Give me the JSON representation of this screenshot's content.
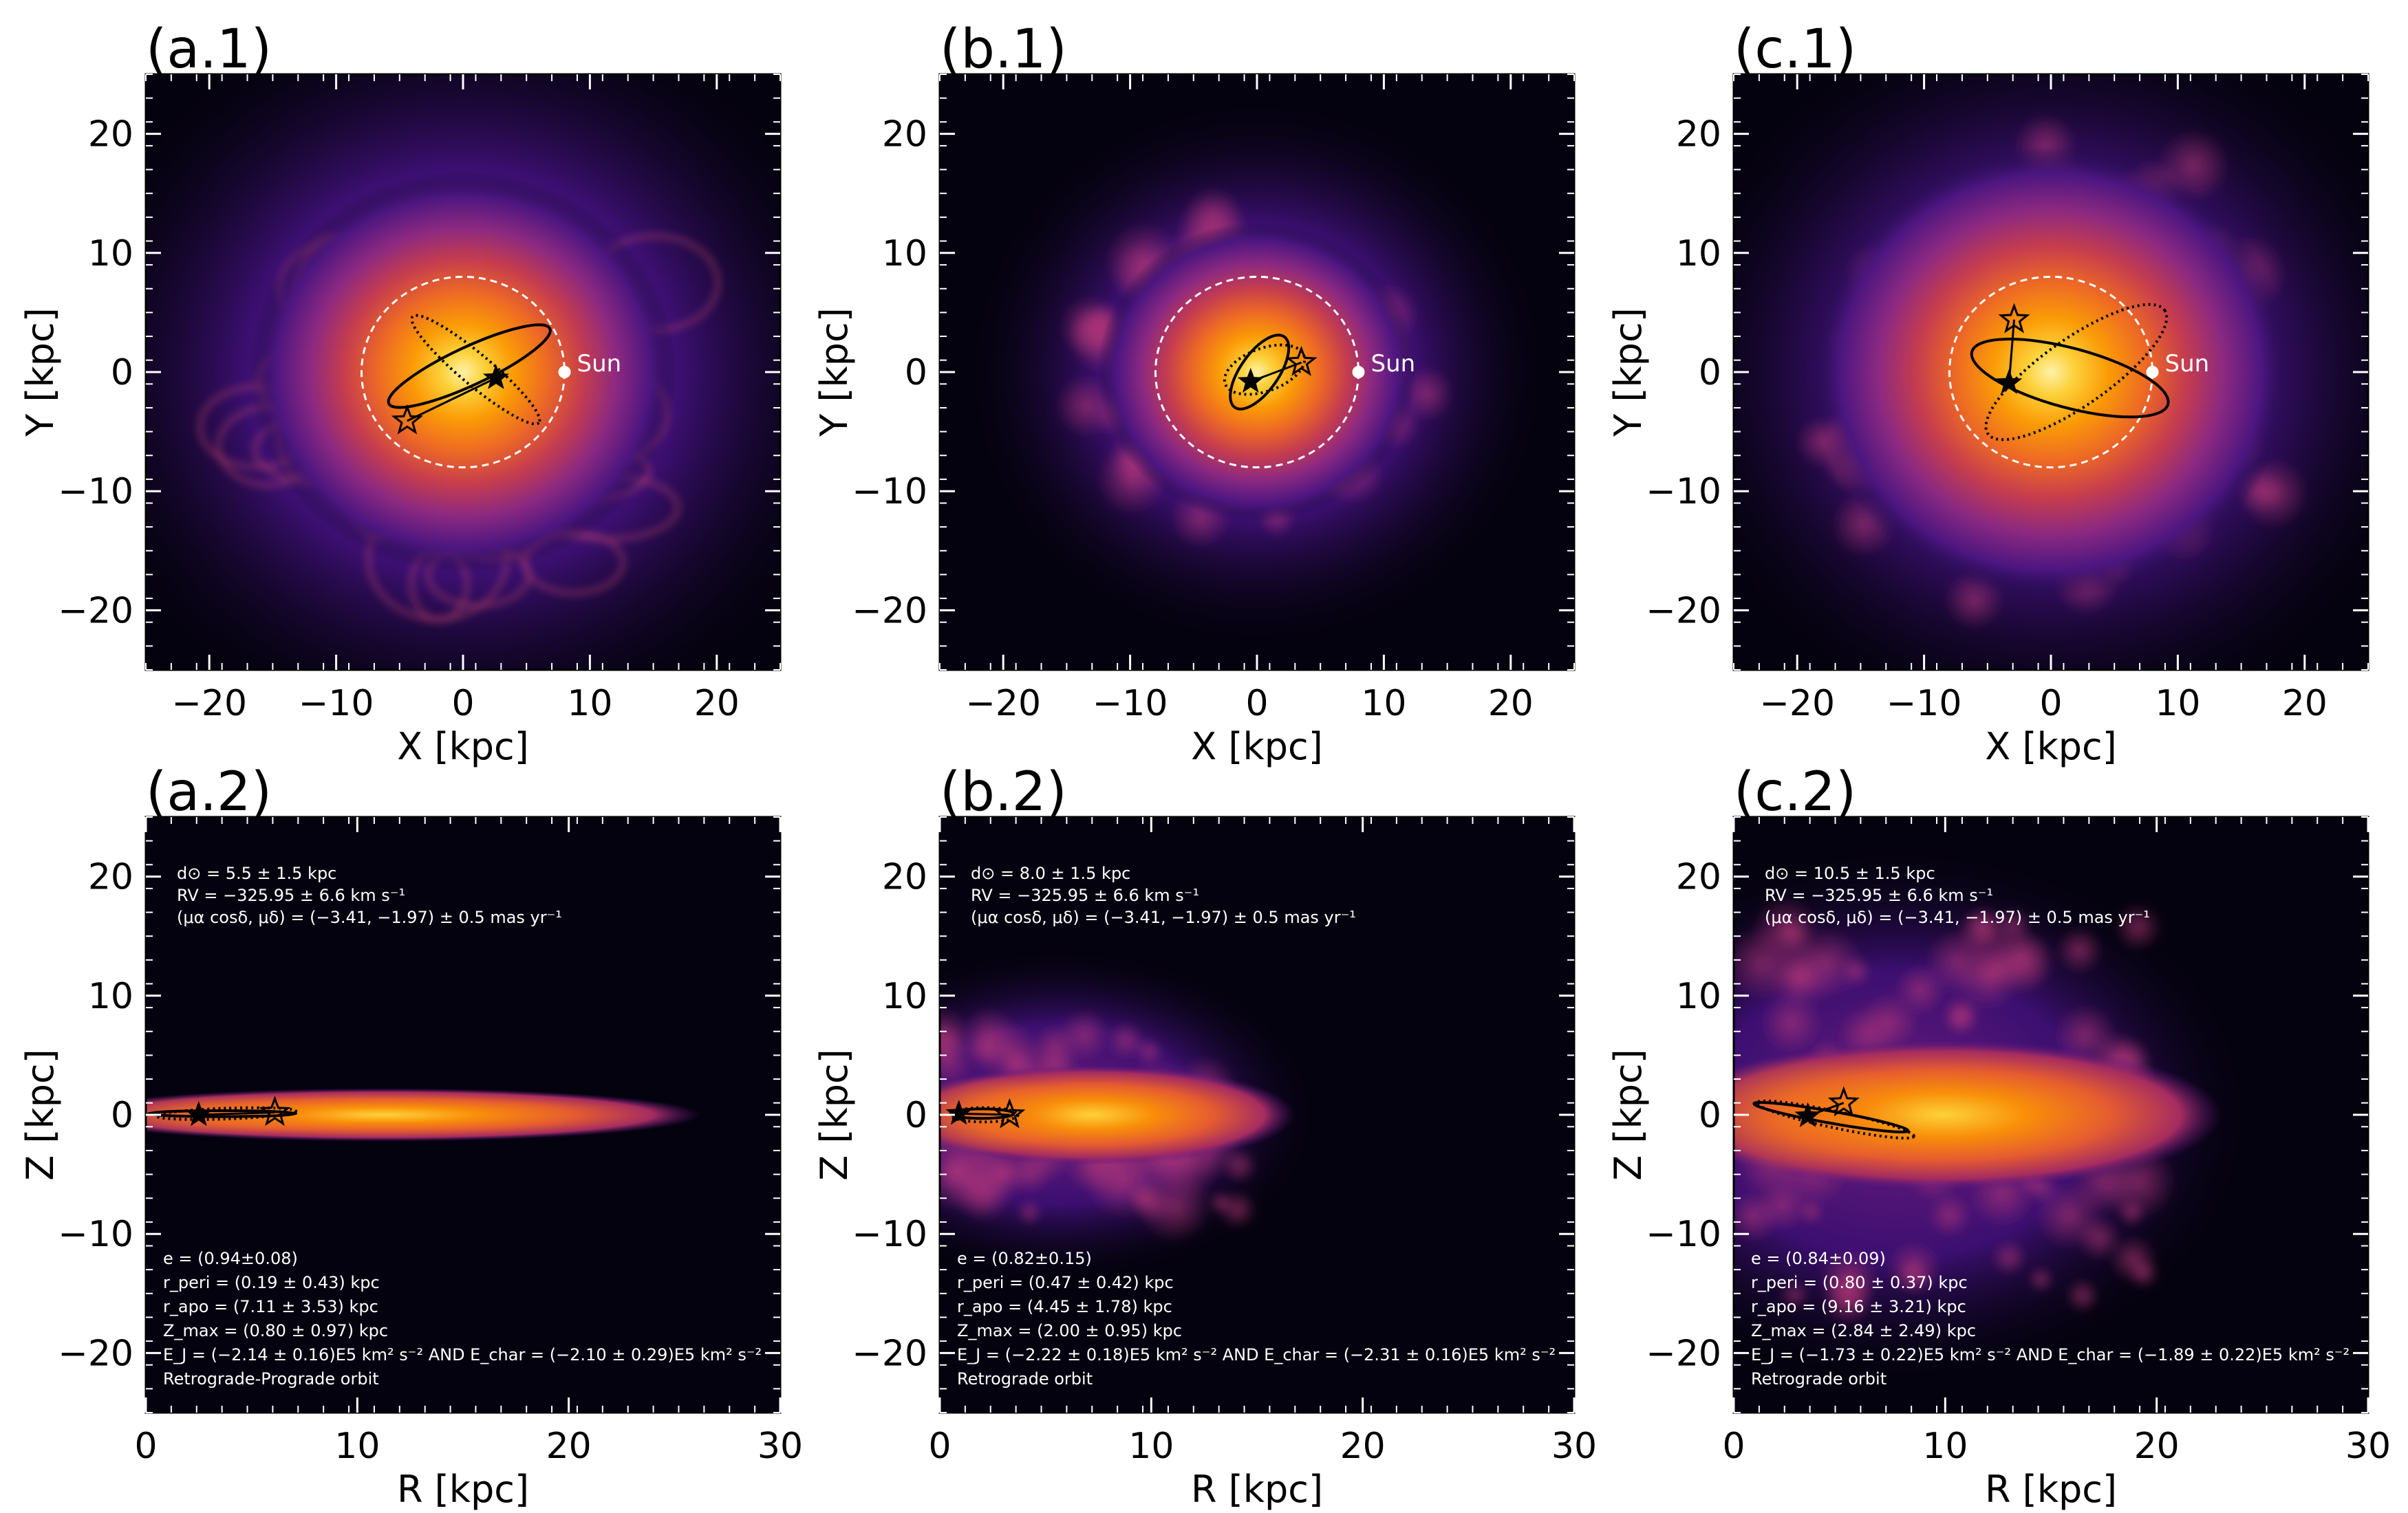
{
  "colors": {
    "star_marker": "#000000",
    "sun_marker": "#ffffff",
    "frame": "#000000",
    "circle": "#ffffff"
  },
  "chart_data": [
    {
      "id": "a1",
      "type": "heatmap",
      "title": "(a.1)",
      "xlabel": "X [kpc]",
      "ylabel": "Y [kpc]",
      "xlim": [
        -25,
        25
      ],
      "ylim": [
        -25,
        25
      ],
      "xticks": [
        -20,
        -10,
        0,
        10,
        20
      ],
      "yticks": [
        -20,
        -10,
        0,
        10,
        20
      ],
      "xtick_labels": [
        "−20",
        "−10",
        "0",
        "10",
        "20"
      ],
      "ytick_labels": [
        "−20",
        "−10",
        "0",
        "10",
        "20"
      ],
      "density": {
        "core_radius": 8,
        "halo_radius": 25,
        "structure": "loops"
      },
      "sun": {
        "label": "Sun",
        "x": 8,
        "y": 0
      },
      "solar_circle_radius": 8,
      "current_star": {
        "x": 2.6,
        "y": -0.5
      },
      "initial_star": {
        "x": -4.4,
        "y": -4.1
      },
      "orbits": [
        {
          "style": "solid",
          "cx": 0.5,
          "cy": 0.5,
          "rx": 7.0,
          "ry": 1.6,
          "angle": 25
        },
        {
          "style": "dotted",
          "cx": 1.0,
          "cy": 0.2,
          "rx": 6.5,
          "ry": 1.3,
          "angle": -40
        }
      ]
    },
    {
      "id": "b1",
      "type": "heatmap",
      "title": "(b.1)",
      "xlabel": "X [kpc]",
      "ylabel": "Y [kpc]",
      "xlim": [
        -25,
        25
      ],
      "ylim": [
        -25,
        25
      ],
      "xticks": [
        -20,
        -10,
        0,
        10,
        20
      ],
      "yticks": [
        -20,
        -10,
        0,
        10,
        20
      ],
      "xtick_labels": [
        "−20",
        "−10",
        "0",
        "10",
        "20"
      ],
      "ytick_labels": [
        "−20",
        "−10",
        "0",
        "10",
        "20"
      ],
      "density": {
        "core_radius": 6,
        "halo_radius": 18,
        "structure": "blobs"
      },
      "sun": {
        "label": "Sun",
        "x": 8,
        "y": 0
      },
      "solar_circle_radius": 8,
      "current_star": {
        "x": -0.5,
        "y": -0.8
      },
      "initial_star": {
        "x": 3.5,
        "y": 0.8
      },
      "orbits": [
        {
          "style": "solid",
          "cx": 0.2,
          "cy": 0.0,
          "rx": 3.4,
          "ry": 1.6,
          "angle": 55
        },
        {
          "style": "dotted",
          "cx": 0.6,
          "cy": 0.2,
          "rx": 3.3,
          "ry": 1.8,
          "angle": 20
        }
      ]
    },
    {
      "id": "c1",
      "type": "heatmap",
      "title": "(c.1)",
      "xlabel": "X [kpc]",
      "ylabel": "Y [kpc]",
      "xlim": [
        -25,
        25
      ],
      "ylim": [
        -25,
        25
      ],
      "xticks": [
        -20,
        -10,
        0,
        10,
        20
      ],
      "yticks": [
        -20,
        -10,
        0,
        10,
        20
      ],
      "xtick_labels": [
        "−20",
        "−10",
        "0",
        "10",
        "20"
      ],
      "ytick_labels": [
        "−20",
        "−10",
        "0",
        "10",
        "20"
      ],
      "density": {
        "core_radius": 9,
        "halo_radius": 24,
        "structure": "blobs"
      },
      "sun": {
        "label": "Sun",
        "x": 8,
        "y": 0
      },
      "solar_circle_radius": 8,
      "current_star": {
        "x": -3.3,
        "y": -0.9
      },
      "initial_star": {
        "x": -2.9,
        "y": 4.4
      },
      "orbits": [
        {
          "style": "solid",
          "cx": 1.5,
          "cy": -0.5,
          "rx": 8.0,
          "ry": 2.5,
          "angle": -15
        },
        {
          "style": "dotted",
          "cx": 2.0,
          "cy": 0.0,
          "rx": 8.5,
          "ry": 2.8,
          "angle": 35
        }
      ]
    },
    {
      "id": "a2",
      "type": "heatmap",
      "title": "(a.2)",
      "xlabel": "R [kpc]",
      "ylabel": "Z [kpc]",
      "xlim": [
        0,
        30
      ],
      "ylim": [
        -25,
        25
      ],
      "xticks": [
        0,
        10,
        20,
        30
      ],
      "yticks": [
        -20,
        -10,
        0,
        10,
        20
      ],
      "xtick_labels": [
        "0",
        "10",
        "20",
        "30"
      ],
      "ytick_labels": [
        "−20",
        "−10",
        "0",
        "10",
        "20"
      ],
      "density": {
        "disk_length": 25,
        "disk_thickness": 1.6,
        "puff": 0.0
      },
      "current_star": {
        "x": 2.5,
        "y": 0.0
      },
      "initial_star": {
        "x": 6.1,
        "y": 0.2
      },
      "orbits": [
        {
          "style": "solid",
          "cx": 3.6,
          "cy": 0.1,
          "rx": 3.5,
          "ry": 0.25,
          "angle": 0
        },
        {
          "style": "dotted",
          "cx": 3.8,
          "cy": 0.1,
          "rx": 3.3,
          "ry": 0.45,
          "angle": 2
        }
      ],
      "info_top": [
        "d⊙ = 5.5 ± 1.5 kpc",
        "RV = −325.95 ± 6.6 km s⁻¹",
        "(μα cosδ, μδ) = (−3.41, −1.97) ± 0.5 mas yr⁻¹"
      ],
      "info_bottom": [
        "e  =  (0.94±0.08)",
        "r_peri = (0.19 ± 0.43) kpc",
        "r_apo = (7.11 ± 3.53) kpc",
        "Z_max = (0.80 ± 0.97) kpc",
        "E_J = (−2.14 ± 0.16)E5 km² s⁻² AND E_char = (−2.10 ± 0.29)E5 km² s⁻²",
        "Retrograde-Prograde orbit"
      ]
    },
    {
      "id": "b2",
      "type": "heatmap",
      "title": "(b.2)",
      "xlabel": "R [kpc]",
      "ylabel": "Z [kpc]",
      "xlim": [
        0,
        30
      ],
      "ylim": [
        -25,
        25
      ],
      "xticks": [
        0,
        10,
        20,
        30
      ],
      "yticks": [
        -20,
        -10,
        0,
        10,
        20
      ],
      "xtick_labels": [
        "0",
        "10",
        "20",
        "30"
      ],
      "ytick_labels": [
        "−20",
        "−10",
        "0",
        "10",
        "20"
      ],
      "density": {
        "disk_length": 16,
        "disk_thickness": 3.0,
        "puff": 0.4
      },
      "current_star": {
        "x": 0.9,
        "y": 0.1
      },
      "initial_star": {
        "x": 3.3,
        "y": 0.0
      },
      "orbits": [
        {
          "style": "solid",
          "cx": 2.0,
          "cy": 0.1,
          "rx": 1.5,
          "ry": 0.4,
          "angle": 0
        },
        {
          "style": "dotted",
          "cx": 2.1,
          "cy": 0.0,
          "rx": 1.6,
          "ry": 0.6,
          "angle": 0
        }
      ],
      "info_top": [
        "d⊙ = 8.0 ± 1.5 kpc",
        "RV = −325.95 ± 6.6 km s⁻¹",
        "(μα cosδ, μδ) = (−3.41, −1.97) ± 0.5 mas yr⁻¹"
      ],
      "info_bottom": [
        "e  =  (0.82±0.15)",
        "r_peri = (0.47 ± 0.42) kpc",
        "r_apo = (4.45 ± 1.78) kpc",
        "Z_max = (2.00 ± 0.95) kpc",
        "E_J = (−2.22 ± 0.18)E5 km² s⁻² AND E_char = (−2.31 ± 0.16)E5 km² s⁻²",
        "Retrograde orbit"
      ]
    },
    {
      "id": "c2",
      "type": "heatmap",
      "title": "(c.2)",
      "xlabel": "R [kpc]",
      "ylabel": "Z [kpc]",
      "xlim": [
        0,
        30
      ],
      "ylim": [
        -25,
        25
      ],
      "xticks": [
        0,
        10,
        20,
        30
      ],
      "yticks": [
        -20,
        -10,
        0,
        10,
        20
      ],
      "xtick_labels": [
        "0",
        "10",
        "20",
        "30"
      ],
      "ytick_labels": [
        "−20",
        "−10",
        "0",
        "10",
        "20"
      ],
      "density": {
        "disk_length": 22,
        "disk_thickness": 4.5,
        "puff": 1.0
      },
      "current_star": {
        "x": 3.5,
        "y": -0.1
      },
      "initial_star": {
        "x": 5.2,
        "y": 1.0
      },
      "orbits": [
        {
          "style": "solid",
          "cx": 4.6,
          "cy": -0.2,
          "rx": 3.7,
          "ry": 0.5,
          "angle": -10
        },
        {
          "style": "dotted",
          "cx": 4.8,
          "cy": -0.4,
          "rx": 3.8,
          "ry": 0.7,
          "angle": -12
        }
      ],
      "info_top": [
        "d⊙ = 10.5 ± 1.5 kpc",
        "RV = −325.95 ± 6.6 km s⁻¹",
        "(μα cosδ, μδ) = (−3.41, −1.97) ± 0.5 mas yr⁻¹"
      ],
      "info_bottom": [
        "e  =  (0.84±0.09)",
        "r_peri = (0.80 ± 0.37) kpc",
        "r_apo = (9.16 ± 3.21) kpc",
        "Z_max = (2.84 ± 2.49) kpc",
        "E_J = (−1.73 ± 0.22)E5 km² s⁻² AND E_char = (−1.89 ± 0.22)E5 km² s⁻²",
        "Retrograde orbit"
      ]
    }
  ]
}
